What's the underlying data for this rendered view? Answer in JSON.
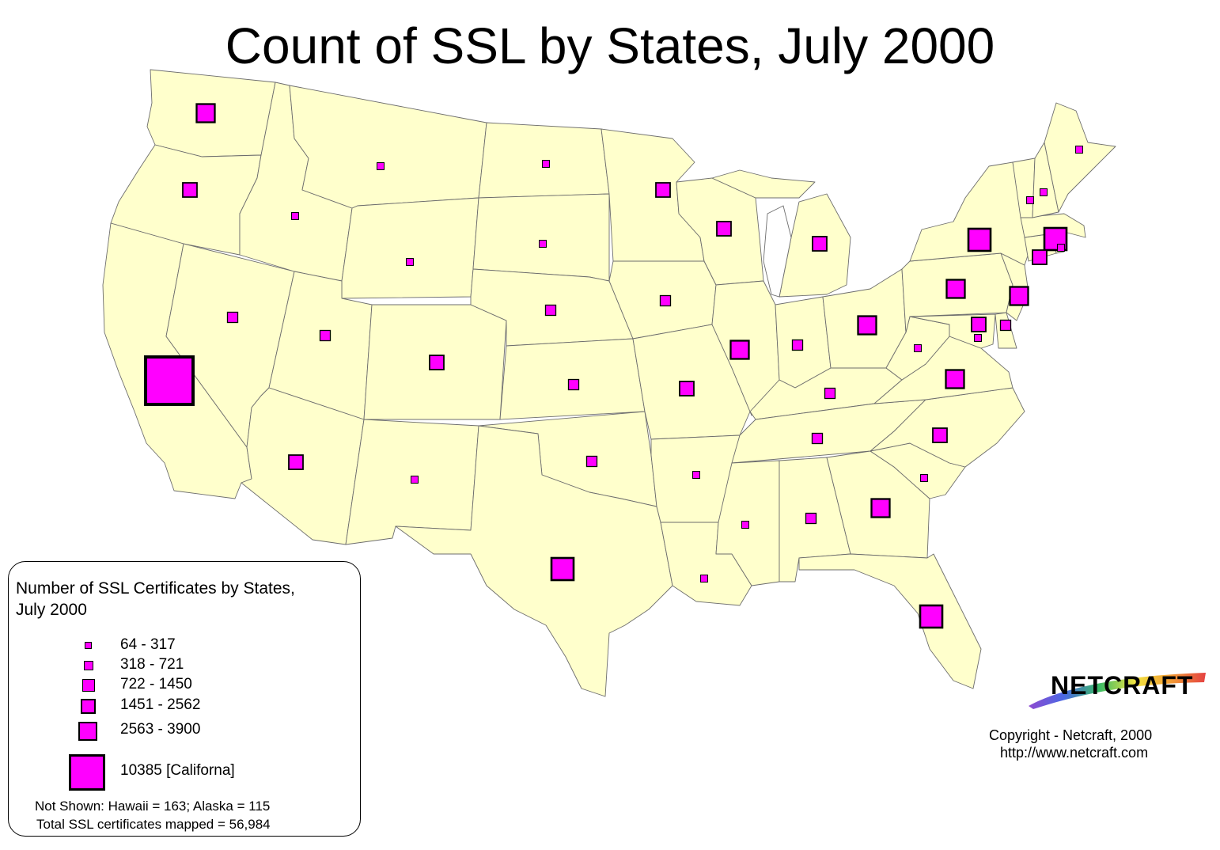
{
  "title": "Count of SSL by States, July 2000",
  "colors": {
    "land": "#ffffcc",
    "symbol": "#ff00ff",
    "border": "#6d6d6d"
  },
  "legend": {
    "title_line1": "Number of SSL Certificates by States,",
    "title_line2": "July 2000",
    "classes": [
      {
        "label": "64 - 317",
        "class": 1
      },
      {
        "label": "318 - 721",
        "class": 2
      },
      {
        "label": "722 - 1450",
        "class": 3
      },
      {
        "label": "1451 - 2562",
        "class": 4
      },
      {
        "label": "2563 - 3900",
        "class": 5
      },
      {
        "label": "10385   [Californa]",
        "class": 6
      }
    ],
    "note_not_shown": "Not Shown: Hawaii =  163; Alaska = 115",
    "note_total": "Total SSL certificates mapped = 56,984"
  },
  "logo": {
    "text": "NETCRAFT",
    "icon": "netcraft-rainbow-swoosh"
  },
  "copyright": "Copyright - Netcraft, 2000",
  "url": "http://www.netcraft.com",
  "states": [
    {
      "name": "Washington",
      "class": 4
    },
    {
      "name": "Oregon",
      "class": 3
    },
    {
      "name": "California",
      "class": 6
    },
    {
      "name": "Idaho",
      "class": 1
    },
    {
      "name": "Nevada",
      "class": 2
    },
    {
      "name": "Montana",
      "class": 1
    },
    {
      "name": "Wyoming",
      "class": 1
    },
    {
      "name": "Utah",
      "class": 2
    },
    {
      "name": "Colorado",
      "class": 3
    },
    {
      "name": "Arizona",
      "class": 3
    },
    {
      "name": "New Mexico",
      "class": 1
    },
    {
      "name": "North Dakota",
      "class": 1
    },
    {
      "name": "South Dakota",
      "class": 1
    },
    {
      "name": "Nebraska",
      "class": 2
    },
    {
      "name": "Kansas",
      "class": 2
    },
    {
      "name": "Oklahoma",
      "class": 2
    },
    {
      "name": "Texas",
      "class": 5
    },
    {
      "name": "Minnesota",
      "class": 3
    },
    {
      "name": "Iowa",
      "class": 2
    },
    {
      "name": "Missouri",
      "class": 3
    },
    {
      "name": "Arkansas",
      "class": 1
    },
    {
      "name": "Louisiana",
      "class": 1
    },
    {
      "name": "Wisconsin",
      "class": 3
    },
    {
      "name": "Illinois",
      "class": 4
    },
    {
      "name": "Michigan",
      "class": 3
    },
    {
      "name": "Indiana",
      "class": 2
    },
    {
      "name": "Ohio",
      "class": 4
    },
    {
      "name": "Kentucky",
      "class": 2
    },
    {
      "name": "Tennessee",
      "class": 2
    },
    {
      "name": "Mississippi",
      "class": 1
    },
    {
      "name": "Alabama",
      "class": 2
    },
    {
      "name": "Georgia",
      "class": 4
    },
    {
      "name": "Florida",
      "class": 5
    },
    {
      "name": "South Carolina",
      "class": 1
    },
    {
      "name": "North Carolina",
      "class": 3
    },
    {
      "name": "Virginia",
      "class": 4
    },
    {
      "name": "West Virginia",
      "class": 1
    },
    {
      "name": "Pennsylvania",
      "class": 4
    },
    {
      "name": "New York",
      "class": 5
    },
    {
      "name": "New Jersey",
      "class": 4
    },
    {
      "name": "Maryland",
      "class": 3
    },
    {
      "name": "Delaware",
      "class": 2
    },
    {
      "name": "District of Columbia",
      "class": 1
    },
    {
      "name": "Connecticut",
      "class": 3
    },
    {
      "name": "Massachusetts",
      "class": 5
    },
    {
      "name": "Rhode Island",
      "class": 1
    },
    {
      "name": "Vermont",
      "class": 1
    },
    {
      "name": "New Hampshire",
      "class": 1
    },
    {
      "name": "Maine",
      "class": 1
    }
  ]
}
